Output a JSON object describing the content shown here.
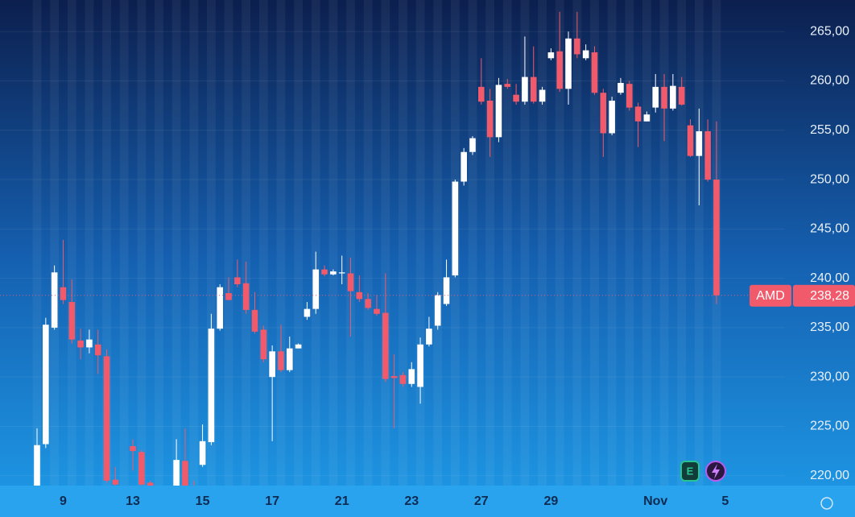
{
  "chart_data": {
    "type": "candlestick",
    "symbol": "AMD",
    "earnings_marker": "E",
    "last_price": {
      "value": 238.28,
      "label": "238,28"
    },
    "up_color": "#ffffff",
    "down_color": "#f05a6a",
    "categories": [
      null,
      null,
      null,
      "9",
      null,
      null,
      null,
      null,
      null,
      null,
      null,
      "13",
      null,
      null,
      null,
      null,
      null,
      null,
      null,
      "15",
      null,
      null,
      null,
      null,
      null,
      null,
      null,
      "17",
      null,
      null,
      null,
      null,
      null,
      null,
      null,
      "21",
      null,
      null,
      null,
      null,
      null,
      null,
      null,
      "23",
      null,
      null,
      null,
      null,
      null,
      null,
      null,
      "27",
      null,
      null,
      null,
      null,
      null,
      null,
      null,
      "29",
      null,
      null,
      null,
      null,
      null,
      null,
      null,
      null,
      null,
      null,
      null,
      "Nov",
      null,
      null,
      null,
      null,
      null,
      null,
      null,
      "5"
    ],
    "open": [
      218.5,
      223.2,
      235.0,
      239.1,
      237.6,
      233.7,
      233.0,
      233.3,
      232.1,
      219.6,
      218.5,
      223.0,
      222.4,
      219.3,
      218.3,
      218.0,
      219.0,
      221.5,
      218.8,
      221.1,
      223.4,
      234.9,
      238.5,
      240.1,
      239.5,
      236.8,
      234.8,
      230.0,
      232.6,
      230.7,
      232.9,
      236.1,
      236.9,
      240.9,
      240.4,
      240.5,
      240.5,
      238.6,
      237.9,
      236.9,
      236.5,
      230.1,
      230.2,
      229.3,
      229.0,
      233.3,
      235.2,
      237.4,
      240.3,
      249.8,
      252.8,
      259.4,
      258.0,
      254.3,
      259.7,
      258.6,
      257.9,
      260.4,
      257.9,
      262.3,
      263.0,
      259.2,
      264.3,
      262.3,
      262.9,
      258.8,
      254.7,
      258.8,
      259.7,
      257.4,
      255.9,
      257.3,
      259.4,
      257.2,
      259.4,
      255.5,
      252.4,
      254.9,
      250.0,
      null
    ],
    "high": [
      224.8,
      236.0,
      241.3,
      243.9,
      239.9,
      234.9,
      234.8,
      234.8,
      232.8,
      220.9,
      219.0,
      223.7,
      222.6,
      219.5,
      218.6,
      218.6,
      223.7,
      224.8,
      219.5,
      225.2,
      236.4,
      239.4,
      240.1,
      241.9,
      241.7,
      238.6,
      235.2,
      233.2,
      235.3,
      234.1,
      233.4,
      237.6,
      242.7,
      241.3,
      240.9,
      242.3,
      242.1,
      240.3,
      238.5,
      238.3,
      240.5,
      232.3,
      230.5,
      231.5,
      234.0,
      236.1,
      238.6,
      241.9,
      250.0,
      253.2,
      254.4,
      262.3,
      259.2,
      260.3,
      260.2,
      259.7,
      264.5,
      263.5,
      259.4,
      263.3,
      267.0,
      265.0,
      267.0,
      263.7,
      263.5,
      259.2,
      258.4,
      260.3,
      260.0,
      257.8,
      256.9,
      260.7,
      260.7,
      260.7,
      260.4,
      256.1,
      257.2,
      256.1,
      255.9,
      null
    ],
    "low": [
      217,
      222.8,
      234.8,
      237.4,
      233.4,
      231.8,
      232.4,
      230.3,
      219.3,
      218.9,
      217.0,
      220.5,
      218.9,
      218.8,
      217.5,
      217.2,
      218.5,
      218.5,
      217.5,
      220.9,
      223.1,
      234.7,
      237.8,
      239.1,
      236.4,
      234.4,
      231.5,
      223.5,
      230.5,
      230.5,
      232.9,
      235.8,
      236.4,
      240.2,
      240.3,
      239.4,
      234.1,
      237.6,
      236.8,
      236.2,
      229.5,
      224.8,
      229.0,
      229.0,
      227.3,
      233.1,
      234.8,
      237.2,
      240.1,
      249.4,
      252.5,
      257.6,
      252.3,
      253.8,
      259.2,
      257.6,
      257.6,
      257.7,
      257.6,
      262.1,
      258.9,
      257.6,
      262.3,
      262.1,
      258.6,
      252.3,
      254.5,
      258.6,
      257.0,
      253.3,
      255.9,
      256.8,
      253.9,
      257.0,
      257.5,
      252.3,
      247.4,
      249.8,
      237.4,
      null
    ],
    "close": [
      223.1,
      235.3,
      240.6,
      237.8,
      233.8,
      233.0,
      233.8,
      232.2,
      219.5,
      219.1,
      217.5,
      222.5,
      219.1,
      219.0,
      218.0,
      218.4,
      221.6,
      219.0,
      218.0,
      223.5,
      234.9,
      239.1,
      237.8,
      239.4,
      236.8,
      234.6,
      231.8,
      232.6,
      230.7,
      232.9,
      233.3,
      236.9,
      240.9,
      240.4,
      240.7,
      240.6,
      238.7,
      237.9,
      237.0,
      236.4,
      229.8,
      229.9,
      229.3,
      230.8,
      233.3,
      234.9,
      238.3,
      240.1,
      249.8,
      252.8,
      254.2,
      257.9,
      254.3,
      259.6,
      259.4,
      257.9,
      260.4,
      257.9,
      259.1,
      262.9,
      259.2,
      264.3,
      262.7,
      263.1,
      258.8,
      254.7,
      258.0,
      259.8,
      257.3,
      255.9,
      256.6,
      259.4,
      257.2,
      259.5,
      257.6,
      252.4,
      254.9,
      250.0,
      238.28,
      null
    ],
    "ylim": [
      219.0,
      268.2
    ],
    "yticks": [
      {
        "value": 220,
        "label": "220,00"
      },
      {
        "value": 225,
        "label": "225,00"
      },
      {
        "value": 230,
        "label": "230,00"
      },
      {
        "value": 235,
        "label": "235,00"
      },
      {
        "value": 240,
        "label": "240,00"
      },
      {
        "value": 245,
        "label": "245,00"
      },
      {
        "value": 250,
        "label": "250,00"
      },
      {
        "value": 255,
        "label": "255,00"
      },
      {
        "value": 260,
        "label": "260,00"
      },
      {
        "value": 265,
        "label": "265,00"
      }
    ],
    "grid": true
  }
}
